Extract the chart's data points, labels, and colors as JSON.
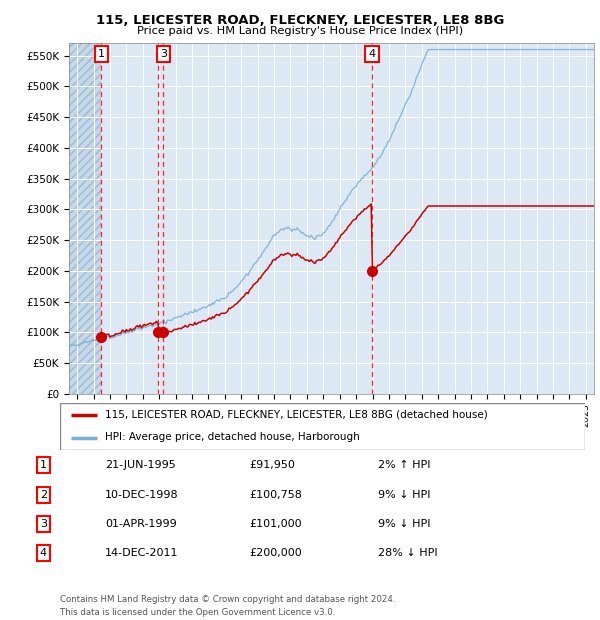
{
  "title1": "115, LEICESTER ROAD, FLECKNEY, LEICESTER, LE8 8BG",
  "title2": "Price paid vs. HM Land Registry's House Price Index (HPI)",
  "ylim": [
    0,
    570000
  ],
  "yticks": [
    0,
    50000,
    100000,
    150000,
    200000,
    250000,
    300000,
    350000,
    400000,
    450000,
    500000,
    550000
  ],
  "ytick_labels": [
    "£0",
    "£50K",
    "£100K",
    "£150K",
    "£200K",
    "£250K",
    "£300K",
    "£350K",
    "£400K",
    "£450K",
    "£500K",
    "£550K"
  ],
  "sale_color": "#cc0000",
  "hpi_color": "#7aaed4",
  "transaction_dates_float": [
    1995.458,
    1998.917,
    1999.25,
    2011.958
  ],
  "transaction_prices": [
    91950,
    100758,
    101000,
    200000
  ],
  "transaction_labels": [
    "1",
    "2",
    "3",
    "4"
  ],
  "visible_label_indices": [
    0,
    2,
    3
  ],
  "legend_sale_label": "115, LEICESTER ROAD, FLECKNEY, LEICESTER, LE8 8BG (detached house)",
  "legend_hpi_label": "HPI: Average price, detached house, Harborough",
  "table_rows": [
    [
      "1",
      "21-JUN-1995",
      "£91,950",
      "2% ↑ HPI"
    ],
    [
      "2",
      "10-DEC-1998",
      "£100,758",
      "9% ↓ HPI"
    ],
    [
      "3",
      "01-APR-1999",
      "£101,000",
      "9% ↓ HPI"
    ],
    [
      "4",
      "14-DEC-2011",
      "£200,000",
      "28% ↓ HPI"
    ]
  ],
  "footer": "Contains HM Land Registry data © Crown copyright and database right 2024.\nThis data is licensed under the Open Government Licence v3.0.",
  "bg_color": "#dce9f5",
  "hatch_color": "#c4d8ea",
  "box_color": "#ffffff",
  "xmin": 1993.5,
  "xmax": 2025.5
}
